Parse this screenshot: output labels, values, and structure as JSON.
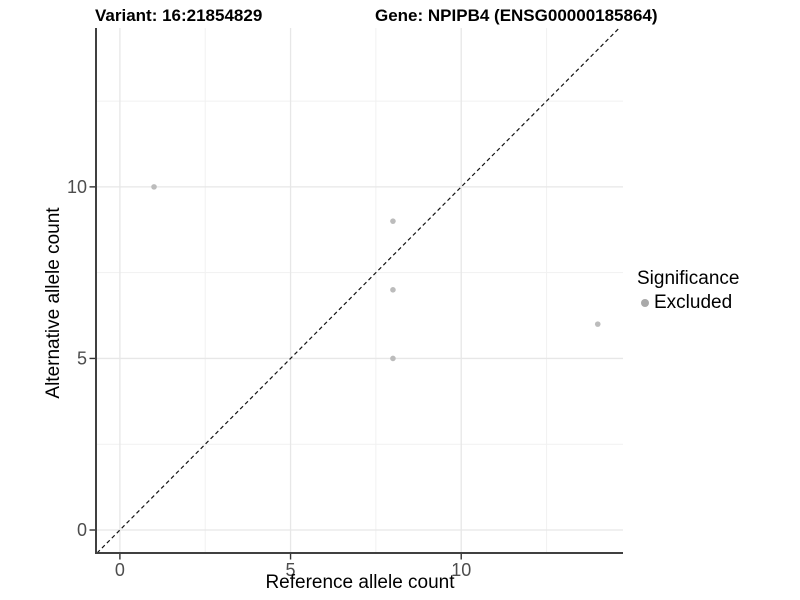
{
  "header": {
    "variant_title": "Variant: 16:21854829",
    "gene_title": "Gene: NPIPB4 (ENSG00000185864)"
  },
  "chart_data": {
    "type": "scatter",
    "title": "",
    "xlabel": "Reference allele count",
    "ylabel": "Alternative allele count",
    "xlim": [
      -0.7,
      14.74
    ],
    "ylim": [
      -0.67,
      14.63
    ],
    "x_major_ticks": [
      0,
      5,
      10
    ],
    "y_major_ticks": [
      0,
      5,
      10
    ],
    "x_minor_gridlines": [
      2.5,
      7.5,
      12.5
    ],
    "y_minor_gridlines": [
      2.5,
      7.5,
      12.5
    ],
    "grid": true,
    "identity_line": {
      "description": "y = x",
      "style": "dashed",
      "color": "#141414"
    },
    "series": [
      {
        "name": "Excluded",
        "color": "#bcbcbc",
        "points": [
          {
            "x": 1,
            "y": 10
          },
          {
            "x": 8,
            "y": 9
          },
          {
            "x": 8,
            "y": 7
          },
          {
            "x": 8,
            "y": 5
          },
          {
            "x": 14,
            "y": 6
          }
        ]
      }
    ],
    "legend": {
      "title": "Significance",
      "position": "right",
      "entries": [
        {
          "label": "Excluded",
          "color": "#a9a9a9"
        }
      ]
    },
    "style": {
      "background": "#ffffff",
      "gridline_major": "#e7e7e7",
      "gridline_minor": "#f1f1f1",
      "axis_line": "#404040",
      "tick_mark": "#333333",
      "tick_label_color": "#4d4d4d"
    }
  }
}
